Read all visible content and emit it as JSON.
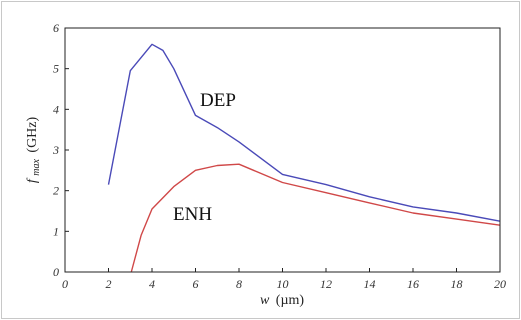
{
  "chart_data": {
    "type": "line",
    "title": "",
    "xlabel": "w (µm)",
    "xlabel_var": "w",
    "xlabel_unit": "(µm)",
    "ylabel": "fmax (GHz)",
    "ylabel_var": "f",
    "ylabel_sub": "max",
    "ylabel_unit": "(GHz)",
    "xlim": [
      0,
      20
    ],
    "ylim": [
      0,
      6
    ],
    "xticks": [
      0,
      2,
      4,
      6,
      8,
      10,
      12,
      14,
      16,
      18,
      20
    ],
    "yticks": [
      0,
      1,
      2,
      3,
      4,
      5,
      6
    ],
    "grid": false,
    "series": [
      {
        "name": "DEP",
        "color": "#4a4ab8",
        "x": [
          2,
          3,
          4,
          4.5,
          5,
          6,
          7,
          8,
          10,
          12,
          14,
          16,
          18,
          20
        ],
        "y": [
          2.15,
          4.95,
          5.6,
          5.45,
          5.0,
          3.85,
          3.55,
          3.2,
          2.4,
          2.15,
          1.85,
          1.6,
          1.45,
          1.25
        ]
      },
      {
        "name": "ENH",
        "color": "#d04848",
        "x": [
          3.05,
          3.5,
          4,
          5,
          6,
          7,
          8,
          10,
          12,
          14,
          16,
          18,
          20
        ],
        "y": [
          0,
          0.9,
          1.55,
          2.1,
          2.5,
          2.62,
          2.65,
          2.2,
          1.95,
          1.7,
          1.45,
          1.3,
          1.15
        ]
      }
    ]
  }
}
